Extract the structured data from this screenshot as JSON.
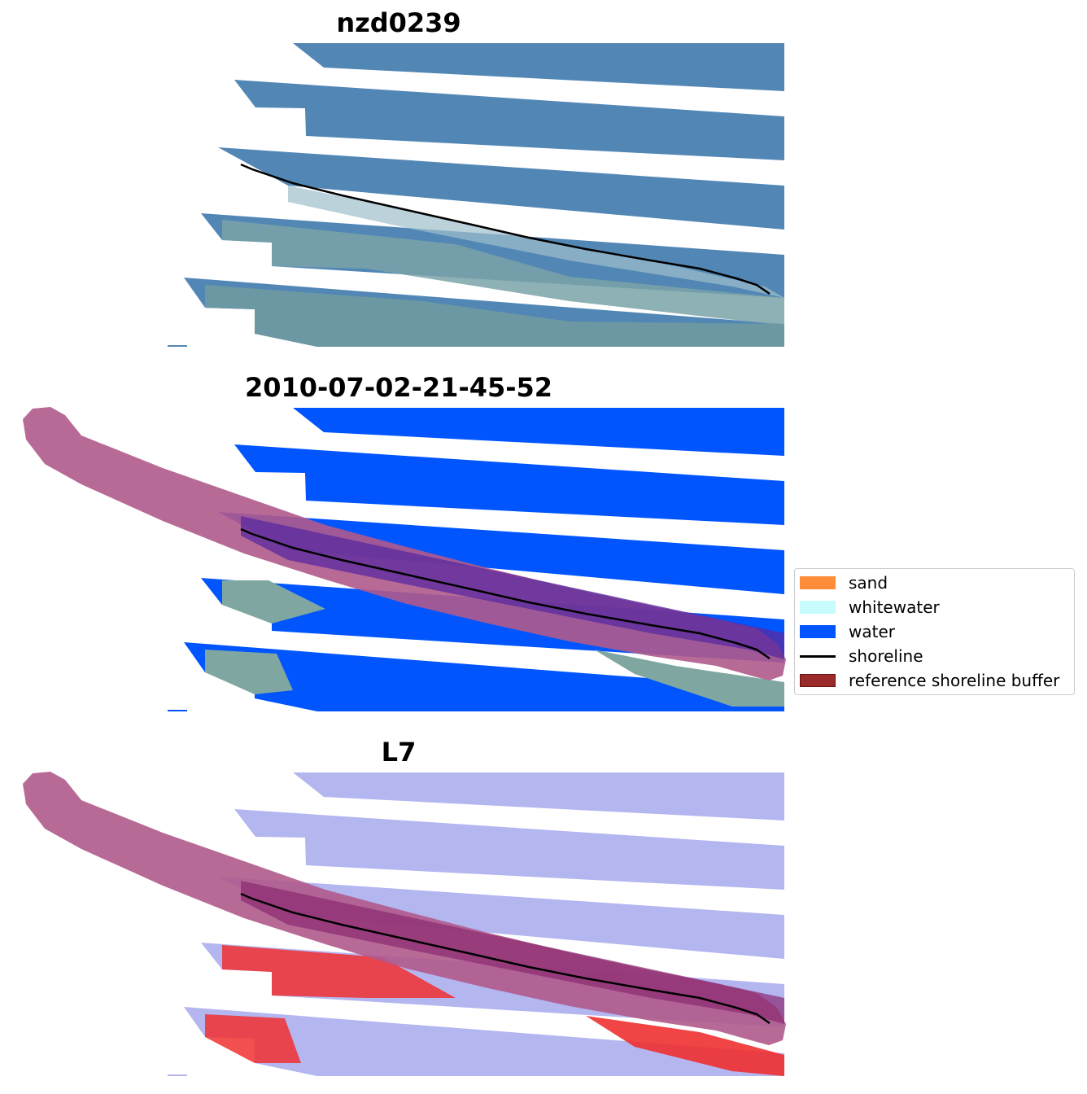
{
  "panels": [
    {
      "title": "nzd0239"
    },
    {
      "title": "2010-07-02-21-45-52"
    },
    {
      "title": "L7"
    }
  ],
  "legend": {
    "items": [
      {
        "label": "sand",
        "color": "#ff8c39",
        "kind": "patch"
      },
      {
        "label": "whitewater",
        "color": "#c8fcfc",
        "kind": "patch"
      },
      {
        "label": "water",
        "color": "#0055ff",
        "kind": "patch"
      },
      {
        "label": "shoreline",
        "color": "#000000",
        "kind": "line"
      },
      {
        "label": "reference shoreline buffer",
        "color": "#8b1a1a",
        "kind": "patch"
      }
    ]
  },
  "colors": {
    "rgb_water": "#5287b5",
    "rgb_land": "#7aa3a8",
    "class_water": "#0055ff",
    "buffer": "#b05a8c",
    "index_water": "#b4b6f0",
    "index_land": "#f03030"
  }
}
